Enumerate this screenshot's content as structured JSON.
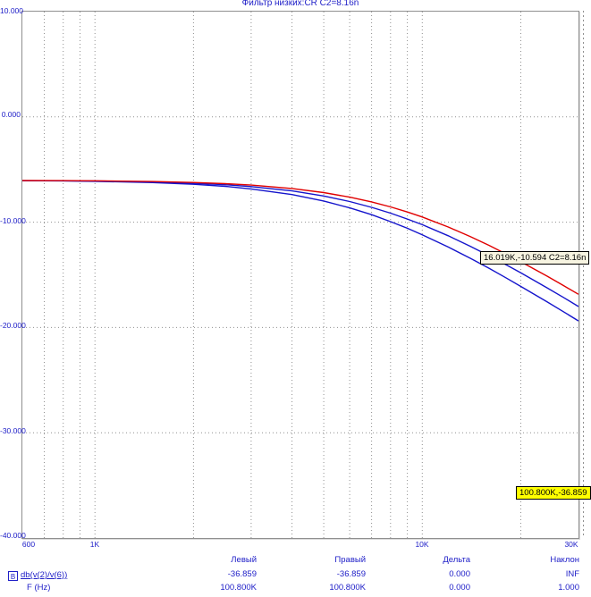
{
  "title": "Фильтр низких:CR C2=8.16n",
  "y_axis": {
    "labels": [
      "10.000",
      "0.000",
      "-10.000",
      "-20.000",
      "-30.000",
      "-40.000"
    ]
  },
  "x_axis": {
    "labels": [
      "600",
      "1K",
      "10K",
      "30K"
    ]
  },
  "signal": {
    "button_label": "B",
    "expression": "db(v(2)/v(6))",
    "x_label": "F (Hz)"
  },
  "cursor_table": {
    "columns": [
      "Левый",
      "Правый",
      "Дельта",
      "Наклон"
    ],
    "rows": [
      [
        "-36.859",
        "-36.859",
        "0.000",
        "INF"
      ],
      [
        "100.800K",
        "100.800K",
        "0.000",
        "1.000"
      ]
    ]
  },
  "annotations": {
    "point_label": "16.019K,-10.594 C2=8.16n",
    "cursor_label": "100.800K,-36.859"
  },
  "colors": {
    "text_blue": "#2020c8",
    "curve_red": "#e00000",
    "curve_blue": "#1414cc",
    "grid": "#909090",
    "annotation_bg": "#f7f4e1",
    "cursor_label_bg": "#ffff00"
  },
  "chart_data": {
    "type": "line",
    "title": "Фильтр низких:CR C2=8.16n",
    "xlabel": "F (Hz)",
    "ylabel": "db(v(2)/v(6))",
    "x_scale": "log",
    "xlim": [
      600,
      30000
    ],
    "ylim": [
      -40,
      10
    ],
    "grid": true,
    "legend_position": "bottom-left",
    "x_gridlines_hz": [
      700,
      800,
      900,
      1000,
      2000,
      3000,
      4000,
      5000,
      6000,
      7000,
      8000,
      9000,
      10000,
      20000
    ],
    "y_gridlines_db": [
      0,
      -10,
      -20,
      -30
    ],
    "x_tick_labels": [
      [
        600,
        "600"
      ],
      [
        1000,
        "1K"
      ],
      [
        10000,
        "10K"
      ],
      [
        30000,
        "30K"
      ]
    ],
    "y_tick_labels": [
      [
        10,
        "10.000"
      ],
      [
        0,
        "0.000"
      ],
      [
        -10,
        "-10.000"
      ],
      [
        -20,
        "-20.000"
      ],
      [
        -30,
        "-30.000"
      ],
      [
        -40,
        "-40.000"
      ]
    ],
    "marked_point": {
      "f_label": "16.019K",
      "db": -10.594,
      "note": "C2=8.16n"
    },
    "cursors": {
      "left": {
        "x": "100.800K",
        "y": -36.859
      },
      "right": {
        "x": "100.800K",
        "y": -36.859
      }
    },
    "series": [
      {
        "name": "blue-lower",
        "color": "#1414cc",
        "points": [
          [
            600,
            -6.06
          ],
          [
            800,
            -6.08
          ],
          [
            1000,
            -6.12
          ],
          [
            1500,
            -6.24
          ],
          [
            2000,
            -6.4
          ],
          [
            2500,
            -6.6
          ],
          [
            3000,
            -6.84
          ],
          [
            4000,
            -7.38
          ],
          [
            5000,
            -7.99
          ],
          [
            6000,
            -8.64
          ],
          [
            7000,
            -9.29
          ],
          [
            8000,
            -9.95
          ],
          [
            9000,
            -10.58
          ],
          [
            10000,
            -11.2
          ],
          [
            12000,
            -12.36
          ],
          [
            14000,
            -13.42
          ],
          [
            16000,
            -14.39
          ],
          [
            18000,
            -15.28
          ],
          [
            20000,
            -16.1
          ],
          [
            24000,
            -17.55
          ],
          [
            27000,
            -18.51
          ],
          [
            30000,
            -19.38
          ]
        ]
      },
      {
        "name": "blue-upper",
        "color": "#1414cc",
        "points": [
          [
            600,
            -6.05
          ],
          [
            800,
            -6.07
          ],
          [
            1000,
            -6.09
          ],
          [
            1500,
            -6.18
          ],
          [
            2000,
            -6.3
          ],
          [
            2500,
            -6.44
          ],
          [
            3000,
            -6.62
          ],
          [
            4000,
            -7.03
          ],
          [
            5000,
            -7.51
          ],
          [
            6000,
            -8.04
          ],
          [
            7000,
            -8.59
          ],
          [
            8000,
            -9.14
          ],
          [
            9000,
            -9.7
          ],
          [
            10000,
            -10.24
          ],
          [
            12000,
            -11.29
          ],
          [
            14000,
            -12.28
          ],
          [
            16000,
            -13.19
          ],
          [
            18000,
            -14.03
          ],
          [
            20000,
            -14.81
          ],
          [
            24000,
            -16.22
          ],
          [
            27000,
            -17.15
          ],
          [
            30000,
            -18.01
          ]
        ]
      },
      {
        "name": "red",
        "color": "#e00000",
        "points": [
          [
            600,
            -6.04
          ],
          [
            800,
            -6.05
          ],
          [
            1000,
            -6.07
          ],
          [
            1500,
            -6.14
          ],
          [
            2000,
            -6.23
          ],
          [
            2500,
            -6.34
          ],
          [
            3000,
            -6.48
          ],
          [
            4000,
            -6.8
          ],
          [
            5000,
            -7.19
          ],
          [
            6000,
            -7.62
          ],
          [
            7000,
            -8.07
          ],
          [
            8000,
            -8.55
          ],
          [
            9000,
            -9.03
          ],
          [
            10000,
            -9.51
          ],
          [
            12000,
            -10.46
          ],
          [
            14000,
            -11.36
          ],
          [
            16000,
            -12.21
          ],
          [
            18000,
            -13.01
          ],
          [
            20000,
            -13.76
          ],
          [
            24000,
            -15.11
          ],
          [
            27000,
            -16.02
          ],
          [
            30000,
            -16.85
          ]
        ]
      }
    ]
  }
}
